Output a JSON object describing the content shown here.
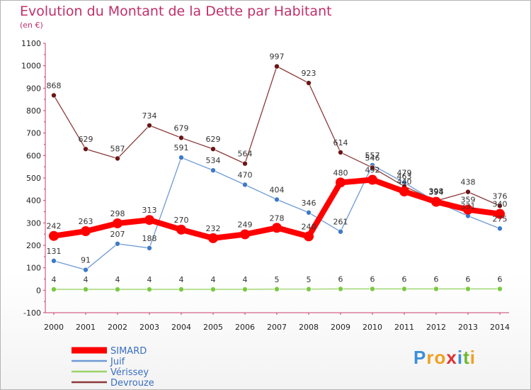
{
  "chart_data": {
    "type": "line",
    "title": "Evolution du Montant de la Dette par Habitant",
    "unit_label": "(en €)",
    "x": [
      "2000",
      "2001",
      "2002",
      "2003",
      "2004",
      "2005",
      "2006",
      "2007",
      "2008",
      "2009",
      "2010",
      "2011",
      "2012",
      "2013",
      "2014"
    ],
    "ylim": [
      -100,
      1100
    ],
    "yticks": [
      -100,
      0,
      100,
      200,
      300,
      400,
      500,
      600,
      700,
      800,
      900,
      1000,
      1100
    ],
    "grid": false,
    "legend_position": "bottom-left",
    "series": [
      {
        "name": "SIMARD",
        "color": "#ff0000",
        "marker_color": "#ff0000",
        "values": [
          242,
          263,
          298,
          313,
          270,
          232,
          249,
          278,
          240,
          480,
          492,
          440,
          394,
          359,
          340
        ]
      },
      {
        "name": "Juif",
        "color": "#6d9ad4",
        "marker_color": "#3d7ac8",
        "values": [
          131,
          91,
          207,
          188,
          591,
          534,
          470,
          404,
          346,
          261,
          557,
          479,
          394,
          331,
          275
        ]
      },
      {
        "name": "Vérissey",
        "color": "#9ad46a",
        "marker_color": "#7ac943",
        "values": [
          4,
          4,
          4,
          4,
          4,
          4,
          4,
          5,
          5,
          6,
          6,
          6,
          6,
          6,
          6
        ]
      },
      {
        "name": "Devrouze",
        "color": "#8b3a3a",
        "marker_color": "#6b1515",
        "values": [
          868,
          629,
          587,
          734,
          679,
          629,
          564,
          997,
          923,
          614,
          546,
          463,
          398,
          438,
          376
        ]
      }
    ]
  },
  "brand": {
    "letters": [
      "P",
      "r",
      "o",
      "x",
      "i",
      "t",
      "i"
    ],
    "colors": [
      "#3a8fd8",
      "#f0a020",
      "#f0a020",
      "#e03030",
      "#3a8fd8",
      "#70b830",
      "#f0a020"
    ]
  }
}
